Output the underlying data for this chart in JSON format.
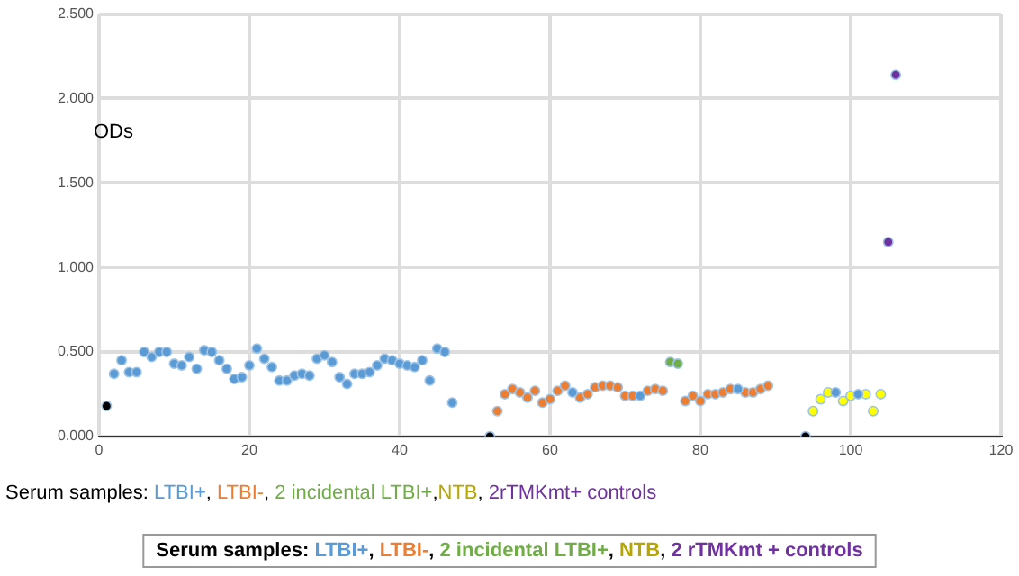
{
  "chart_data": {
    "type": "scatter",
    "ylabel": "ODs",
    "xlabel": "Serum samples: LTBI+, LTBI-, 2 incidental LTBI+,NTB, 2rTMKmt+ controls",
    "annotations": [
      "Serum samples: LTBI+, LTBI-, 2 incidental LTBI+, NTB, 2 rTMKmt + controls"
    ],
    "xlim": [
      0,
      120
    ],
    "xticks": [
      0,
      20,
      40,
      60,
      80,
      100,
      120
    ],
    "ylim": [
      0,
      2.5
    ],
    "yticks": [
      {
        "value": 0,
        "label": "0.000"
      },
      {
        "value": 0.5,
        "label": "0.500"
      },
      {
        "value": 1,
        "label": "1.000"
      },
      {
        "value": 1.5,
        "label": "1.500"
      },
      {
        "value": 2,
        "label": "2.000"
      },
      {
        "value": 2.5,
        "label": "2.500"
      }
    ],
    "grid": true,
    "legend": false,
    "marker": "circle",
    "series": [
      {
        "color": "#5b9bd5",
        "x": [
          2,
          3,
          4,
          5,
          6,
          7,
          8,
          9,
          10,
          11,
          12,
          13,
          14,
          15,
          16,
          17,
          18,
          19,
          20,
          21,
          22,
          23,
          24,
          25,
          26,
          27,
          28,
          29,
          30,
          31,
          32,
          33,
          34,
          35,
          36,
          37,
          38,
          39,
          40,
          41,
          42,
          43,
          44,
          45,
          46,
          47,
          63,
          72,
          85,
          98,
          101
        ],
        "values": [
          0.37,
          0.45,
          0.38,
          0.38,
          0.5,
          0.47,
          0.5,
          0.5,
          0.43,
          0.42,
          0.47,
          0.4,
          0.51,
          0.5,
          0.45,
          0.4,
          0.34,
          0.35,
          0.42,
          0.52,
          0.46,
          0.41,
          0.33,
          0.33,
          0.36,
          0.37,
          0.36,
          0.46,
          0.48,
          0.44,
          0.35,
          0.31,
          0.37,
          0.37,
          0.38,
          0.42,
          0.46,
          0.45,
          0.43,
          0.42,
          0.41,
          0.45,
          0.33,
          0.52,
          0.5,
          0.2,
          0.26,
          0.24,
          0.28,
          0.26,
          0.25
        ]
      },
      {
        "color": "#ed7d31",
        "x": [
          53,
          54,
          55,
          56,
          57,
          58,
          59,
          60,
          61,
          62,
          64,
          65,
          66,
          67,
          68,
          69,
          70,
          71,
          73,
          74,
          75,
          78,
          79,
          80,
          81,
          82,
          83,
          84,
          86,
          87,
          88,
          89
        ],
        "values": [
          0.15,
          0.25,
          0.28,
          0.26,
          0.23,
          0.27,
          0.2,
          0.22,
          0.27,
          0.3,
          0.23,
          0.25,
          0.29,
          0.3,
          0.3,
          0.29,
          0.24,
          0.24,
          0.27,
          0.28,
          0.27,
          0.21,
          0.24,
          0.21,
          0.25,
          0.25,
          0.26,
          0.28,
          0.26,
          0.26,
          0.28,
          0.3
        ]
      },
      {
        "color": "#70ad47",
        "x": [
          76,
          77
        ],
        "values": [
          0.44,
          0.43
        ]
      },
      {
        "color": "#ffff00",
        "x": [
          95,
          96,
          97,
          99,
          100,
          102,
          103,
          104
        ],
        "values": [
          0.15,
          0.22,
          0.26,
          0.21,
          0.24,
          0.25,
          0.15,
          0.25
        ]
      },
      {
        "color": "#7030a0",
        "x": [
          105,
          106
        ],
        "values": [
          1.15,
          2.14
        ]
      },
      {
        "color": "#000000",
        "x": [
          1,
          52,
          94
        ],
        "values": [
          0.18,
          0,
          0
        ]
      }
    ]
  }
}
